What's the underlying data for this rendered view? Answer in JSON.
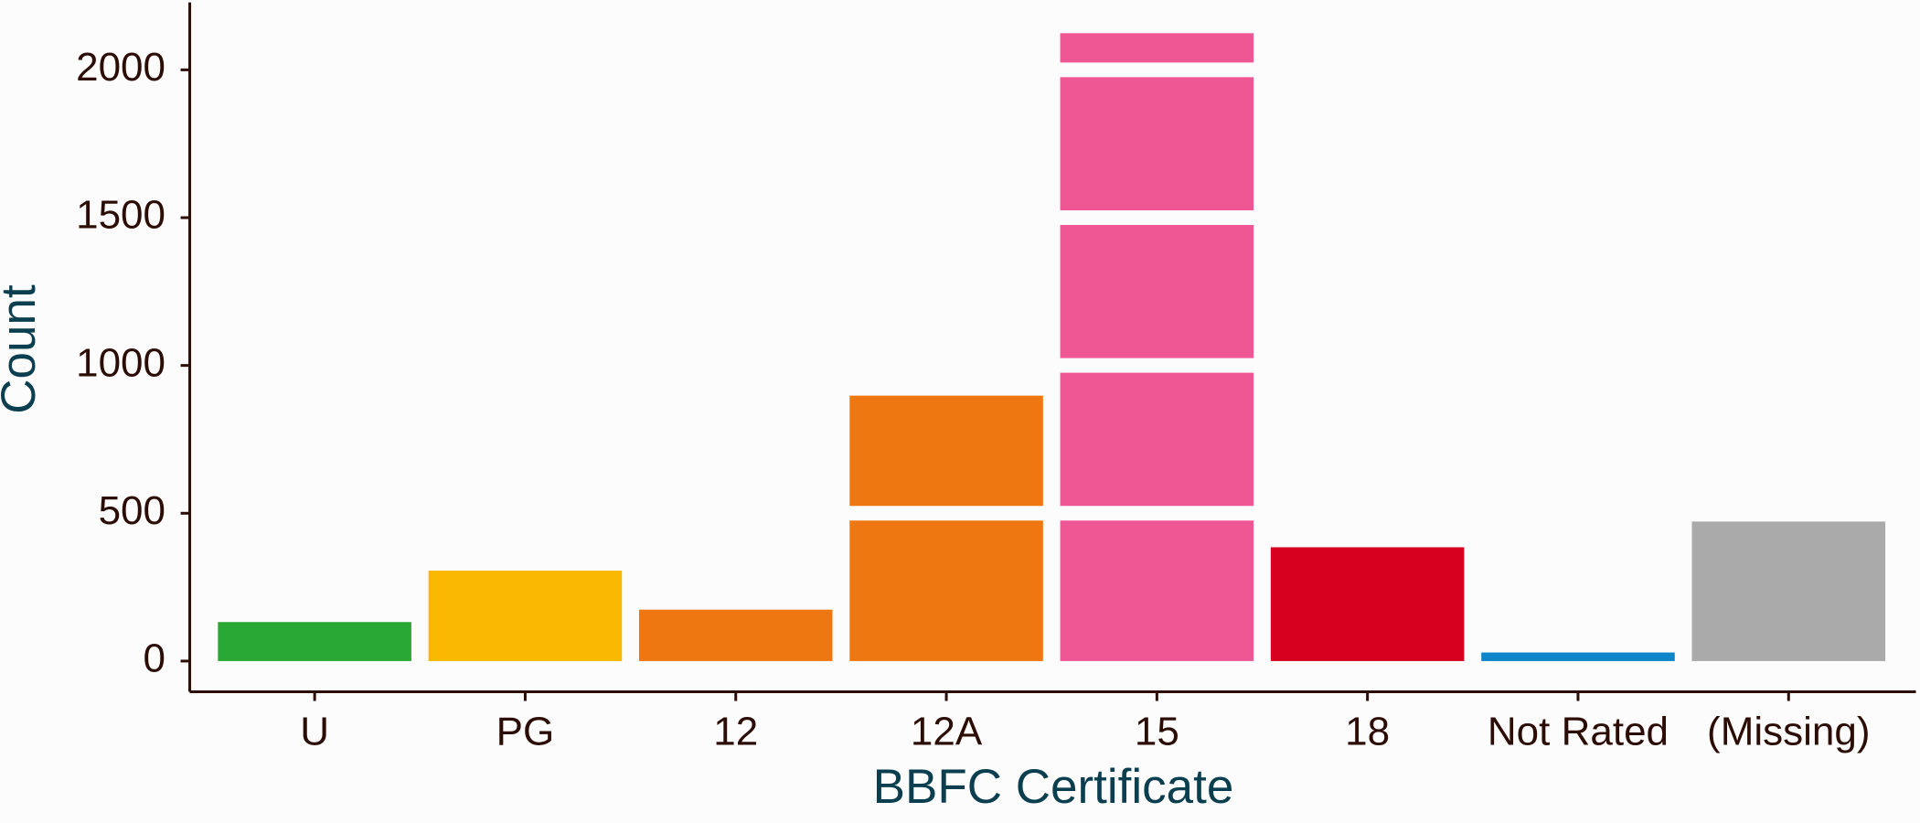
{
  "chart_data": {
    "type": "bar",
    "xlabel": "BBFC Certificate",
    "ylabel": "Count",
    "categories": [
      "U",
      "PG",
      "12",
      "12A",
      "15",
      "18",
      "Not Rated",
      "(Missing)"
    ],
    "values": [
      132,
      306,
      174,
      898,
      2124,
      385,
      29,
      472
    ],
    "colors": [
      "#2aa836",
      "#fbb800",
      "#ef7711",
      "#ef7711",
      "#ee5794",
      "#d7001f",
      "#0d85c8",
      "#aaaaaa"
    ],
    "ylim": [
      -104,
      2228
    ],
    "yticks": [
      0,
      500,
      1000,
      1500,
      2000
    ],
    "grid": true
  }
}
